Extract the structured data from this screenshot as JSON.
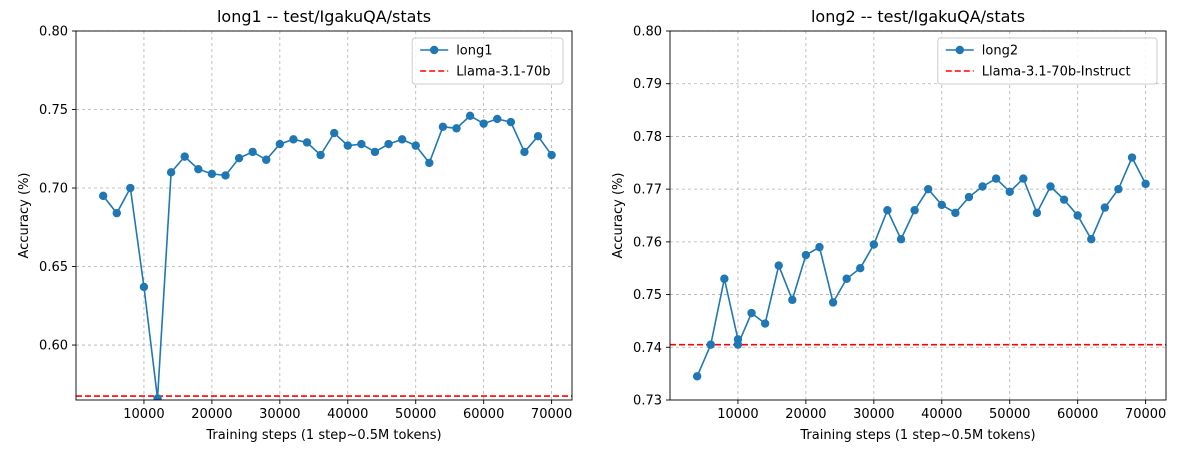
{
  "chart_data": [
    {
      "type": "line",
      "title": "long1 -- test/IgakuQA/stats",
      "xlabel": "Training steps (1 step~0.5M tokens)",
      "ylabel": "Accuracy (%)",
      "xlim": [
        0,
        73000
      ],
      "ylim": [
        0.565,
        0.8
      ],
      "xticks": [
        10000,
        20000,
        30000,
        40000,
        50000,
        60000,
        70000
      ],
      "xtick_labels": [
        "10000",
        "20000",
        "30000",
        "40000",
        "50000",
        "60000",
        "70000"
      ],
      "yticks": [
        0.6,
        0.65,
        0.7,
        0.75,
        0.8
      ],
      "ytick_labels": [
        "0.60",
        "0.65",
        "0.70",
        "0.75",
        "0.80"
      ],
      "grid": true,
      "legend_position": "top-right",
      "series": [
        {
          "name": "long1",
          "color": "#1f77b4",
          "marker": "circle",
          "x": [
            4000,
            6000,
            8000,
            10000,
            12000,
            14000,
            16000,
            18000,
            20000,
            22000,
            24000,
            26000,
            28000,
            30000,
            32000,
            34000,
            36000,
            38000,
            40000,
            42000,
            44000,
            46000,
            48000,
            50000,
            52000,
            54000,
            56000,
            58000,
            60000,
            62000,
            64000,
            66000,
            68000,
            70000
          ],
          "y": [
            0.695,
            0.684,
            0.7,
            0.637,
            0.566,
            0.71,
            0.72,
            0.712,
            0.709,
            0.708,
            0.719,
            0.723,
            0.718,
            0.728,
            0.731,
            0.729,
            0.721,
            0.735,
            0.727,
            0.728,
            0.723,
            0.728,
            0.731,
            0.727,
            0.716,
            0.739,
            0.738,
            0.746,
            0.741,
            0.744,
            0.742,
            0.723,
            0.733,
            0.721
          ]
        }
      ],
      "reference_line": {
        "name": "Llama-3.1-70b",
        "y": 0.5675,
        "color": "#ff0000",
        "style": "dashed"
      }
    },
    {
      "type": "line",
      "title": "long2 -- test/IgakuQA/stats",
      "xlabel": "Training steps (1 step~0.5M tokens)",
      "ylabel": "Accuracy (%)",
      "xlim": [
        0,
        73000
      ],
      "ylim": [
        0.73,
        0.8
      ],
      "xticks": [
        10000,
        20000,
        30000,
        40000,
        50000,
        60000,
        70000
      ],
      "xtick_labels": [
        "10000",
        "20000",
        "30000",
        "40000",
        "50000",
        "60000",
        "70000"
      ],
      "yticks": [
        0.73,
        0.74,
        0.75,
        0.76,
        0.77,
        0.78,
        0.79,
        0.8
      ],
      "ytick_labels": [
        "0.73",
        "0.74",
        "0.75",
        "0.76",
        "0.77",
        "0.78",
        "0.79",
        "0.80"
      ],
      "grid": true,
      "legend_position": "top-right",
      "series": [
        {
          "name": "long2",
          "color": "#1f77b4",
          "marker": "circle",
          "x": [
            4000,
            6000,
            8000,
            10000,
            10000,
            12000,
            14000,
            16000,
            18000,
            20000,
            22000,
            24000,
            26000,
            28000,
            30000,
            32000,
            34000,
            36000,
            38000,
            40000,
            42000,
            44000,
            46000,
            48000,
            50000,
            52000,
            54000,
            56000,
            58000,
            60000,
            62000,
            64000,
            66000,
            68000,
            70000
          ],
          "y": [
            0.7345,
            0.7405,
            0.753,
            0.7415,
            0.7405,
            0.7465,
            0.7445,
            0.7555,
            0.749,
            0.7575,
            0.759,
            0.7485,
            0.753,
            0.755,
            0.7595,
            0.766,
            0.7605,
            0.766,
            0.77,
            0.767,
            0.7655,
            0.7685,
            0.7705,
            0.772,
            0.7695,
            0.772,
            0.7655,
            0.7705,
            0.768,
            0.765,
            0.7605,
            0.7665,
            0.77,
            0.776,
            0.771
          ]
        }
      ],
      "reference_line": {
        "name": "Llama-3.1-70b-Instruct",
        "y": 0.7405,
        "color": "#ff0000",
        "style": "dashed"
      }
    }
  ]
}
